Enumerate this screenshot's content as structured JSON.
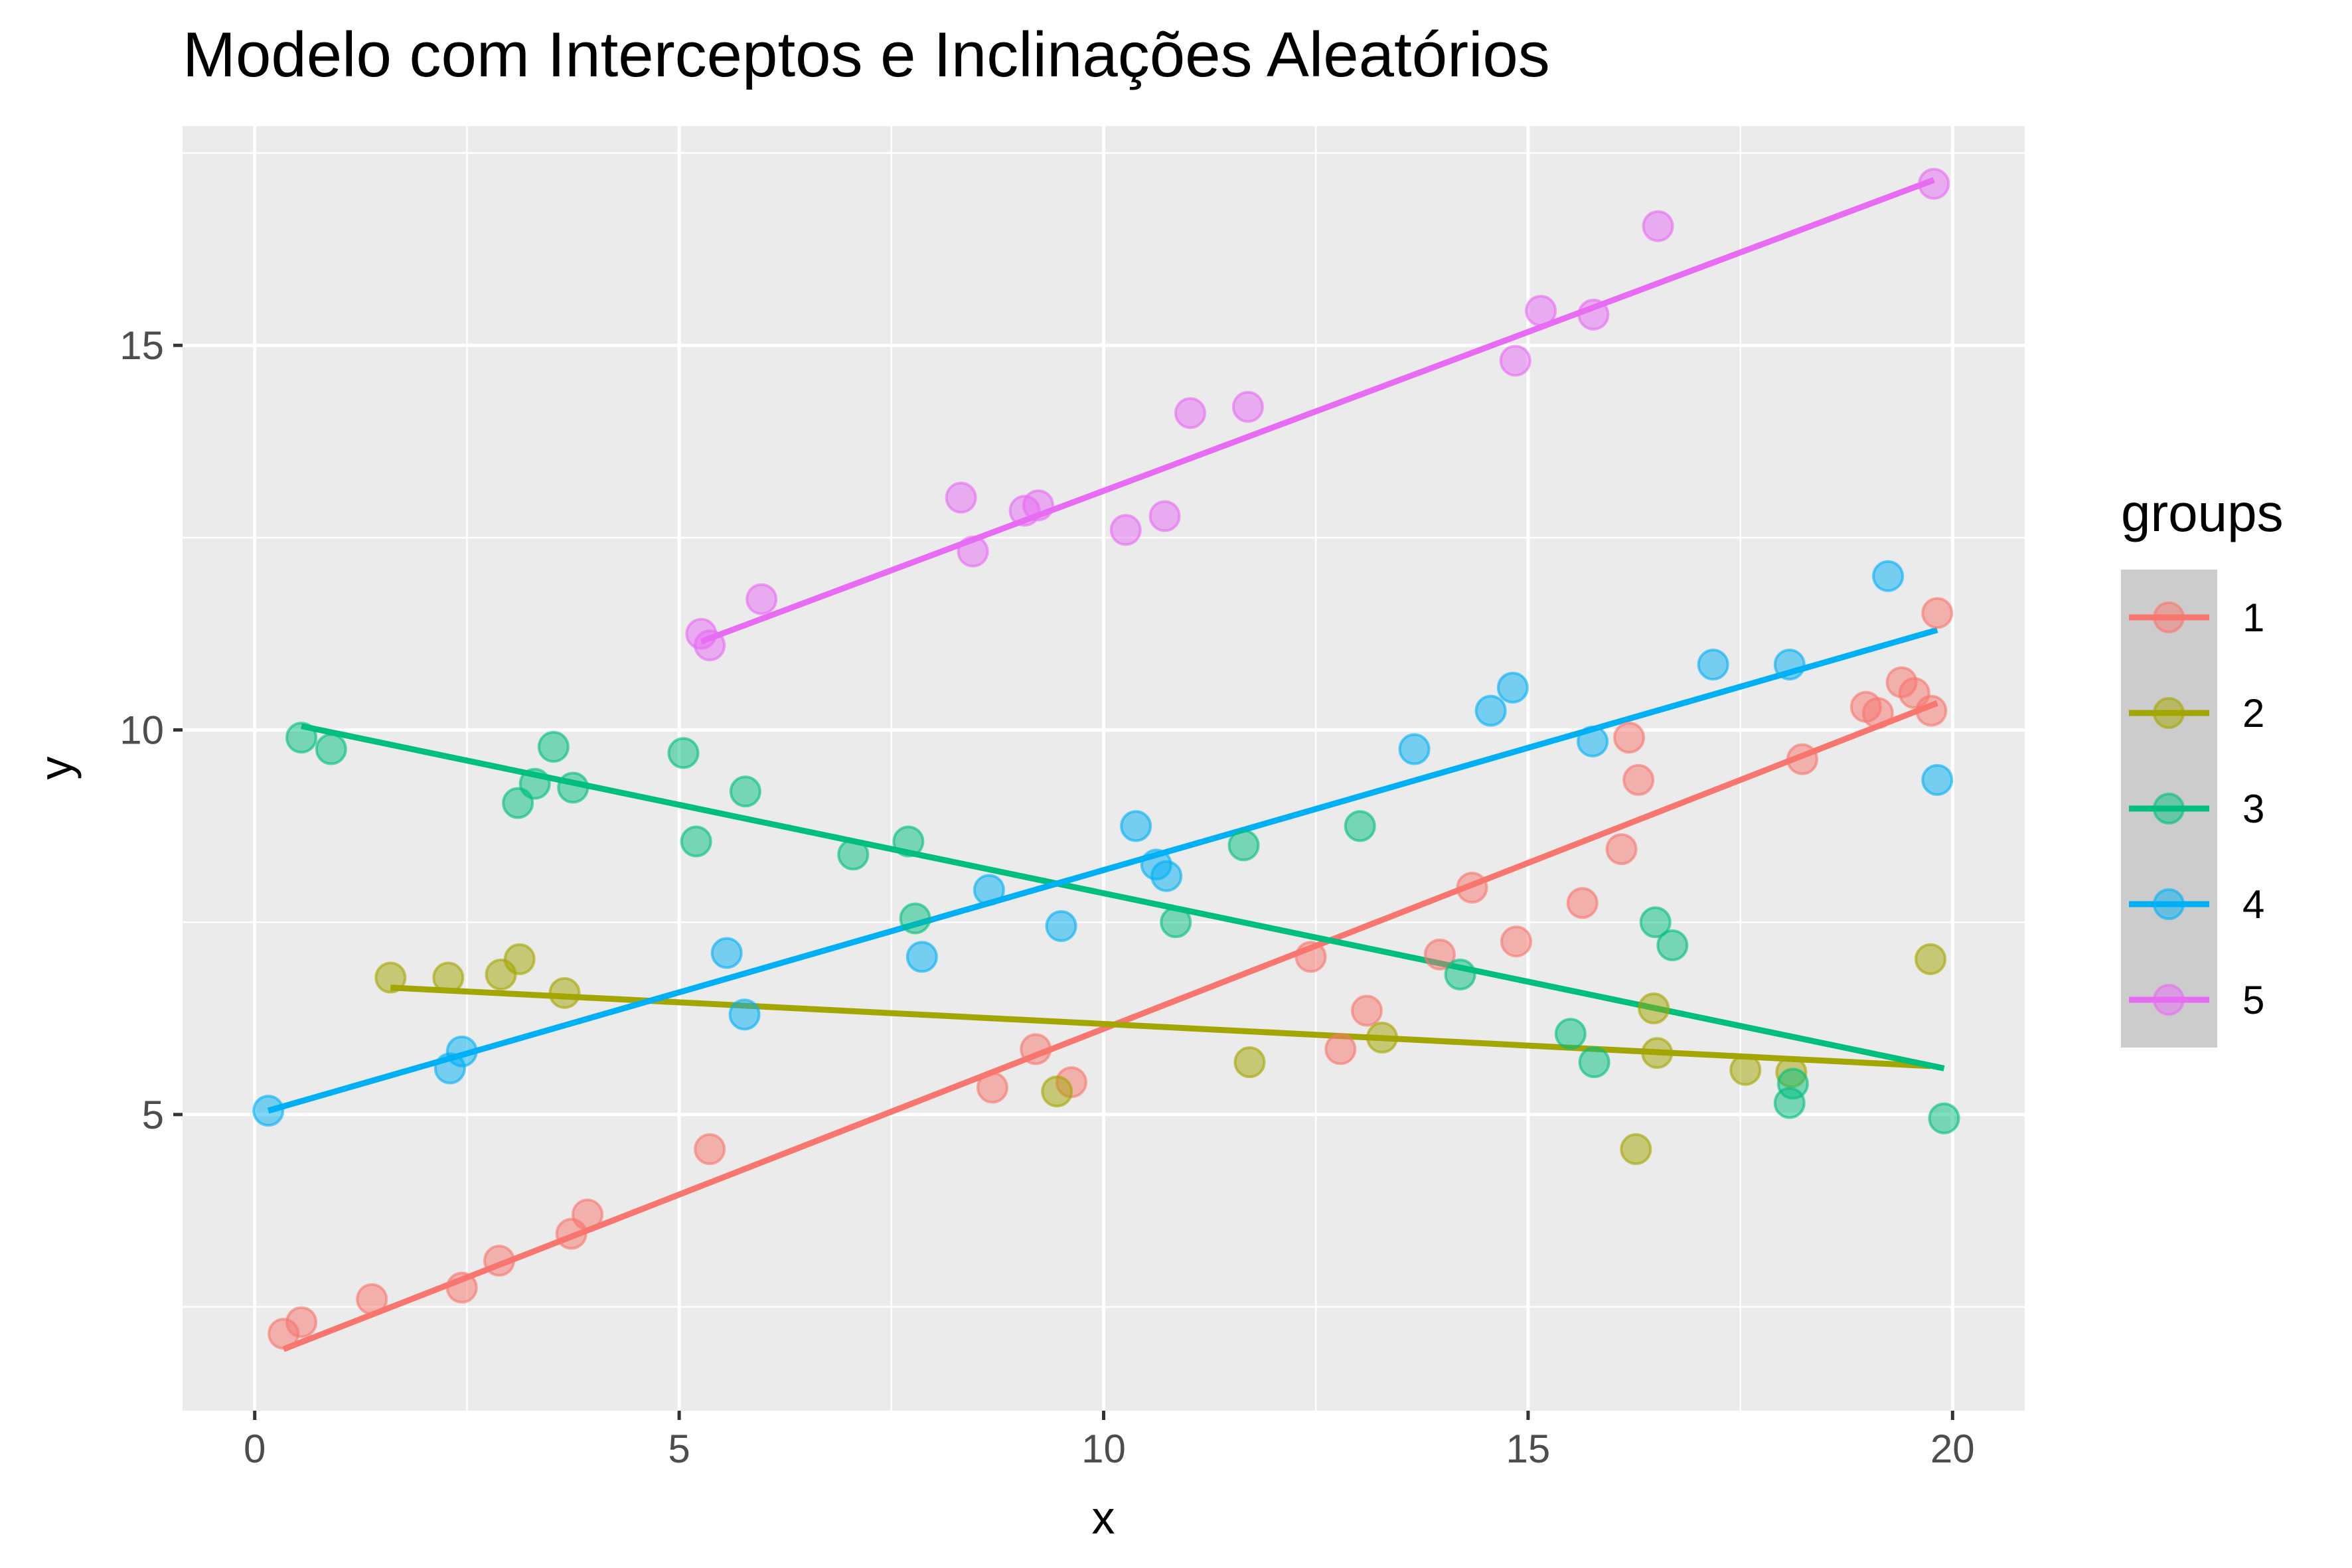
{
  "chart_data": {
    "type": "scatter",
    "title": "Modelo com Interceptos e Inclinações Aleatórios",
    "xlabel": "x",
    "ylabel": "y",
    "xlim": [
      -0.85,
      20.85
    ],
    "ylim": [
      1.15,
      17.85
    ],
    "xticks": [
      0,
      5,
      10,
      15,
      20
    ],
    "yticks": [
      5,
      10,
      15
    ],
    "grid": true,
    "legend": {
      "title": "groups",
      "position": "right",
      "entries": [
        "1",
        "2",
        "3",
        "4",
        "5"
      ]
    },
    "series": [
      {
        "name": "1",
        "color": "#F8766D",
        "points": [
          [
            0.34,
            2.15
          ],
          [
            0.55,
            2.3
          ],
          [
            1.38,
            2.6
          ],
          [
            2.44,
            2.75
          ],
          [
            2.88,
            3.1
          ],
          [
            3.73,
            3.45
          ],
          [
            3.92,
            3.7
          ],
          [
            5.36,
            4.55
          ],
          [
            8.69,
            5.35
          ],
          [
            9.2,
            5.85
          ],
          [
            9.62,
            5.42
          ],
          [
            12.44,
            7.05
          ],
          [
            12.79,
            5.85
          ],
          [
            13.1,
            6.35
          ],
          [
            13.96,
            7.08
          ],
          [
            14.34,
            7.95
          ],
          [
            14.86,
            7.25
          ],
          [
            15.64,
            7.75
          ],
          [
            16.1,
            8.45
          ],
          [
            16.19,
            9.9
          ],
          [
            16.3,
            9.35
          ],
          [
            18.23,
            9.62
          ],
          [
            18.98,
            10.3
          ],
          [
            19.12,
            10.22
          ],
          [
            19.4,
            10.62
          ],
          [
            19.55,
            10.48
          ],
          [
            19.75,
            10.25
          ],
          [
            19.82,
            11.52
          ]
        ],
        "fit": [
          [
            0.34,
            1.95
          ],
          [
            19.82,
            10.35
          ]
        ]
      },
      {
        "name": "2",
        "color": "#A3A500",
        "points": [
          [
            1.6,
            6.78
          ],
          [
            2.28,
            6.78
          ],
          [
            2.9,
            6.82
          ],
          [
            3.12,
            7.02
          ],
          [
            3.65,
            6.58
          ],
          [
            9.45,
            5.3
          ],
          [
            11.72,
            5.68
          ],
          [
            13.28,
            6.0
          ],
          [
            16.27,
            4.55
          ],
          [
            16.48,
            6.38
          ],
          [
            16.52,
            5.8
          ],
          [
            17.56,
            5.58
          ],
          [
            18.1,
            5.55
          ],
          [
            19.74,
            7.02
          ]
        ],
        "fit": [
          [
            1.6,
            6.65
          ],
          [
            19.74,
            5.63
          ]
        ]
      },
      {
        "name": "3",
        "color": "#00BF7D",
        "points": [
          [
            0.55,
            9.9
          ],
          [
            0.9,
            9.75
          ],
          [
            3.1,
            9.05
          ],
          [
            3.3,
            9.3
          ],
          [
            3.52,
            9.78
          ],
          [
            3.75,
            9.25
          ],
          [
            5.05,
            9.7
          ],
          [
            5.2,
            8.55
          ],
          [
            5.78,
            9.2
          ],
          [
            7.05,
            8.38
          ],
          [
            7.7,
            8.55
          ],
          [
            7.78,
            7.55
          ],
          [
            10.85,
            7.5
          ],
          [
            11.65,
            8.5
          ],
          [
            13.02,
            8.75
          ],
          [
            14.2,
            6.82
          ],
          [
            15.5,
            6.05
          ],
          [
            15.78,
            5.68
          ],
          [
            16.5,
            7.5
          ],
          [
            16.7,
            7.2
          ],
          [
            18.08,
            5.15
          ],
          [
            18.12,
            5.4
          ],
          [
            19.9,
            4.95
          ]
        ],
        "fit": [
          [
            0.55,
            10.05
          ],
          [
            19.9,
            5.6
          ]
        ]
      },
      {
        "name": "4",
        "color": "#00B0F6",
        "points": [
          [
            0.16,
            5.05
          ],
          [
            2.3,
            5.6
          ],
          [
            2.44,
            5.82
          ],
          [
            5.56,
            7.1
          ],
          [
            5.77,
            6.3
          ],
          [
            7.86,
            7.05
          ],
          [
            8.65,
            7.92
          ],
          [
            9.5,
            7.45
          ],
          [
            10.38,
            8.75
          ],
          [
            10.62,
            8.25
          ],
          [
            10.74,
            8.1
          ],
          [
            13.66,
            9.75
          ],
          [
            14.56,
            10.25
          ],
          [
            14.82,
            10.55
          ],
          [
            15.76,
            9.85
          ],
          [
            17.18,
            10.85
          ],
          [
            18.08,
            10.85
          ],
          [
            19.24,
            12.0
          ],
          [
            19.82,
            9.35
          ]
        ],
        "fit": [
          [
            0.16,
            5.05
          ],
          [
            19.82,
            11.3
          ]
        ]
      },
      {
        "name": "5",
        "color": "#E76BF3",
        "points": [
          [
            5.26,
            11.25
          ],
          [
            5.36,
            11.1
          ],
          [
            5.97,
            11.7
          ],
          [
            8.32,
            13.02
          ],
          [
            8.46,
            12.32
          ],
          [
            9.07,
            12.85
          ],
          [
            9.23,
            12.92
          ],
          [
            10.26,
            12.6
          ],
          [
            10.72,
            12.78
          ],
          [
            11.02,
            14.12
          ],
          [
            11.7,
            14.2
          ],
          [
            14.85,
            14.8
          ],
          [
            15.15,
            15.45
          ],
          [
            15.77,
            15.4
          ],
          [
            16.53,
            16.55
          ],
          [
            19.78,
            17.1
          ]
        ],
        "fit": [
          [
            5.26,
            11.15
          ],
          [
            19.78,
            17.15
          ]
        ]
      }
    ]
  }
}
